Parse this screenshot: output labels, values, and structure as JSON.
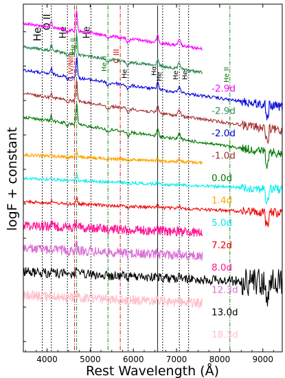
{
  "chart_data": {
    "type": "line",
    "xlabel": "Rest Wavelength (Å)",
    "ylabel": "logF + constant",
    "xlim": [
      3450,
      9450
    ],
    "xticks": [
      4000,
      5000,
      6000,
      7000,
      8000,
      9000
    ],
    "xtick_labels": [
      "4000",
      "5000",
      "6000",
      "7000",
      "8000",
      "9000"
    ],
    "yticks": 10,
    "grid": false,
    "line_markers": [
      {
        "wavelength": 3889,
        "label": "He",
        "color": "#000000",
        "style": "dotted"
      },
      {
        "wavelength": 4100,
        "label": "O II",
        "color": "#000000",
        "style": "dotted"
      },
      {
        "wavelength": 4471,
        "label": "He",
        "color": "#000000",
        "style": "dotted"
      },
      {
        "wavelength": 4634,
        "label": "C IV/NIII",
        "color": "#d00000",
        "style": "dashdot"
      },
      {
        "wavelength": 4686,
        "label": "He II",
        "color": "#007700",
        "style": "dashdot"
      },
      {
        "wavelength": 5016,
        "label": "He",
        "color": "#000000",
        "style": "dotted"
      },
      {
        "wavelength": 5411,
        "label": "He II",
        "color": "#007700",
        "style": "dashdot"
      },
      {
        "wavelength": 5696,
        "label": "C III",
        "color": "#d00000",
        "style": "dashdot"
      },
      {
        "wavelength": 5876,
        "label": "He",
        "color": "#000000",
        "style": "dotted"
      },
      {
        "wavelength": 6563,
        "label": "Hα",
        "color": "#000000",
        "style": "solid"
      },
      {
        "wavelength": 6678,
        "label": "He",
        "color": "#000000",
        "style": "dotted"
      },
      {
        "wavelength": 7065,
        "label": "He",
        "color": "#000000",
        "style": "dotted"
      },
      {
        "wavelength": 7281,
        "label": "He",
        "color": "#000000",
        "style": "dotted"
      },
      {
        "wavelength": 8237,
        "label": "He II",
        "color": "#007700",
        "style": "dashdot"
      }
    ],
    "series": [
      {
        "name": "-2.9d",
        "color": "#ff00ff",
        "x_range": [
          3450,
          7600
        ],
        "offset": 10.0
      },
      {
        "name": "-2.9d",
        "color": "#2e8b57",
        "x_range": [
          3450,
          7600
        ],
        "offset": 9.0
      },
      {
        "name": "-2.0d",
        "color": "#0000dd",
        "x_range": [
          3450,
          9450
        ],
        "offset": 8.0
      },
      {
        "name": "-1.0d",
        "color": "#a52a2a",
        "x_range": [
          3450,
          9450
        ],
        "offset": 7.0
      },
      {
        "name": "0.0d",
        "color": "#007700",
        "x_range": [
          3450,
          9450
        ],
        "offset": 6.0
      },
      {
        "name": "1.4d",
        "color": "#ffa500",
        "x_range": [
          3450,
          7600
        ],
        "offset": 5.0
      },
      {
        "name": "5.0d",
        "color": "#00eeee",
        "x_range": [
          3450,
          9450
        ],
        "offset": 4.0
      },
      {
        "name": "7.2d",
        "color": "#ee0000",
        "x_range": [
          3450,
          9450
        ],
        "offset": 3.0
      },
      {
        "name": "8.0d",
        "color": "#ff1493",
        "x_range": [
          3450,
          7600
        ],
        "offset": 2.0
      },
      {
        "name": "12.3d",
        "color": "#da70d6",
        "x_range": [
          3450,
          7600
        ],
        "offset": 1.0
      },
      {
        "name": "13.0d",
        "color": "#000000",
        "x_range": [
          3450,
          9450
        ],
        "offset": 0.0
      },
      {
        "name": "18.3d",
        "color": "#ffc0cb",
        "x_range": [
          3450,
          7600
        ],
        "offset": -1.0
      }
    ]
  }
}
